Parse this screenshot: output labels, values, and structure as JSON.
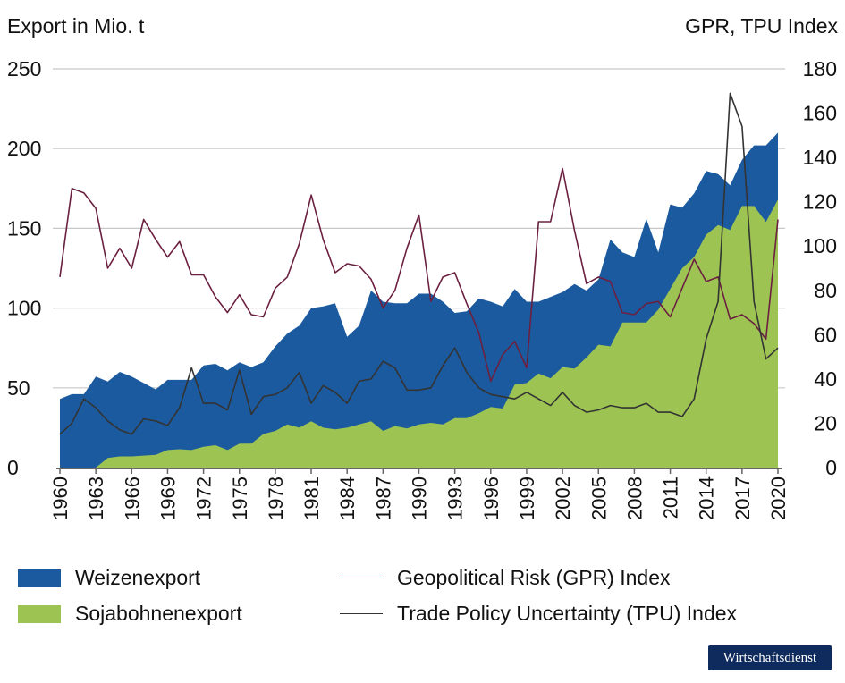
{
  "chart_data": {
    "type": "area",
    "ylabel_left": "Export in Mio. t",
    "ylabel_right": "GPR, TPU Index",
    "ylim_left": [
      0,
      250
    ],
    "ylim_right": [
      0,
      180
    ],
    "yticks_left": [
      "0",
      "50",
      "100",
      "150",
      "200",
      "250"
    ],
    "yticks_right": [
      "0",
      "20",
      "40",
      "60",
      "80",
      "100",
      "120",
      "140",
      "160",
      "180"
    ],
    "grid": true,
    "x_start": 1960,
    "x_end": 2020,
    "xticks": [
      "1960",
      "1963",
      "1966",
      "1969",
      "1972",
      "1975",
      "1978",
      "1981",
      "1984",
      "1987",
      "1990",
      "1993",
      "1996",
      "1999",
      "2002",
      "2005",
      "2008",
      "2011",
      "2014",
      "2017",
      "2020"
    ],
    "legend_position": "bottom",
    "series": [
      {
        "name": "Weizenexport",
        "kind": "area",
        "axis": "left",
        "color": "#1b5a9e",
        "values": [
          43,
          46,
          46,
          57,
          54,
          60,
          57,
          53,
          49,
          55,
          55,
          55,
          64,
          65,
          61,
          66,
          63,
          66,
          76,
          84,
          89,
          100,
          101,
          103,
          82,
          89,
          111,
          104,
          103,
          103,
          109,
          109,
          104,
          97,
          98,
          106,
          104,
          101,
          112,
          104,
          104,
          107,
          110,
          115,
          111,
          118,
          143,
          135,
          132,
          156,
          135,
          165,
          163,
          172,
          186,
          184,
          177,
          193,
          202,
          202,
          210
        ]
      },
      {
        "name": "Sojabohnenexport",
        "kind": "area",
        "axis": "left",
        "color": "#9dc453",
        "values": [
          0,
          0,
          0,
          0,
          6,
          7,
          7,
          7.5,
          8,
          11,
          11.5,
          11,
          13,
          14,
          11,
          15,
          15,
          21,
          23,
          27,
          25,
          29,
          25,
          24,
          25,
          27,
          29,
          23,
          26,
          24.5,
          27,
          28,
          27,
          31,
          31,
          34,
          38,
          37,
          52,
          53,
          59,
          56,
          63,
          62,
          69,
          77,
          76,
          91,
          91,
          91,
          99,
          112,
          125,
          132,
          146,
          152,
          149,
          164,
          164,
          154,
          168
        ]
      },
      {
        "name": "Geopolitical Risk (GPR) Index",
        "kind": "line",
        "axis": "right",
        "color": "#6b2040",
        "values": [
          86,
          126,
          124,
          117,
          90,
          99,
          90,
          112,
          103,
          95,
          102,
          87,
          87,
          77,
          70,
          78,
          69,
          68,
          81,
          86,
          101,
          123,
          103,
          88,
          92,
          91,
          85,
          72,
          80,
          99,
          114,
          75,
          86,
          88,
          74,
          61,
          39,
          51,
          57,
          45,
          111,
          111,
          135,
          107,
          83,
          86,
          84,
          70,
          69,
          74,
          75,
          68,
          81,
          94,
          84,
          86,
          67,
          69,
          65,
          58,
          112
        ]
      },
      {
        "name": "Trade Policy Uncertainty (TPU) Index",
        "kind": "line",
        "axis": "right",
        "color": "#333333",
        "values": [
          15,
          20,
          31,
          27,
          21,
          17,
          15,
          22,
          21,
          19,
          27,
          45,
          29,
          29,
          26,
          44,
          24,
          32,
          33,
          36,
          43,
          29,
          37,
          34,
          29,
          39,
          40,
          48,
          45,
          35,
          35,
          36,
          46,
          54,
          43,
          36,
          33,
          32,
          31,
          34,
          31,
          28,
          34,
          28,
          25,
          26,
          28,
          27,
          27,
          29,
          25,
          25,
          23,
          31,
          58,
          75,
          169,
          154,
          75,
          49,
          54
        ]
      }
    ]
  },
  "legend": {
    "wheat": "Weizenexport",
    "soy": "Sojabohnenexport",
    "gpr": "Geopolitical Risk (GPR) Index",
    "tpu": "Trade Policy Uncertainty (TPU) Index"
  },
  "logo": "Wirtschaftsdienst"
}
